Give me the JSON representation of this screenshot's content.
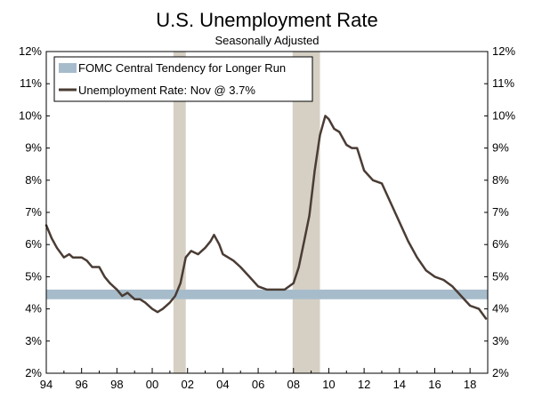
{
  "chart_data": {
    "type": "line",
    "title": "U.S. Unemployment Rate",
    "subtitle": "Seasonally Adjusted",
    "xlabel": "",
    "ylabel": "",
    "xlim": [
      1994,
      2019
    ],
    "ylim": [
      2,
      12
    ],
    "y_ticks": [
      2,
      3,
      4,
      5,
      6,
      7,
      8,
      9,
      10,
      11,
      12
    ],
    "y_tick_labels": [
      "2%",
      "3%",
      "4%",
      "5%",
      "6%",
      "7%",
      "8%",
      "9%",
      "10%",
      "11%",
      "12%"
    ],
    "x_ticks": [
      1994,
      1996,
      1998,
      2000,
      2002,
      2004,
      2006,
      2008,
      2010,
      2012,
      2014,
      2016,
      2018
    ],
    "x_tick_labels": [
      "94",
      "96",
      "98",
      "00",
      "02",
      "04",
      "06",
      "08",
      "10",
      "12",
      "14",
      "16",
      "18"
    ],
    "recessions": [
      {
        "start": 2001.2,
        "end": 2001.9
      },
      {
        "start": 2007.95,
        "end": 2009.5
      }
    ],
    "band": {
      "name": "FOMC Central Tendency for Longer Run",
      "low": 4.3,
      "high": 4.6
    },
    "series": [
      {
        "name": "Unemployment Rate: Nov @ 3.7%",
        "x": [
          1994.0,
          1994.3,
          1994.6,
          1995.0,
          1995.3,
          1995.5,
          1996.0,
          1996.3,
          1996.6,
          1997.0,
          1997.3,
          1997.6,
          1998.0,
          1998.3,
          1998.6,
          1999.0,
          1999.3,
          1999.6,
          2000.0,
          2000.3,
          2000.6,
          2001.0,
          2001.3,
          2001.6,
          2001.9,
          2002.2,
          2002.6,
          2003.0,
          2003.3,
          2003.5,
          2003.8,
          2004.0,
          2004.3,
          2004.6,
          2005.0,
          2005.5,
          2006.0,
          2006.5,
          2007.0,
          2007.5,
          2008.0,
          2008.3,
          2008.6,
          2008.9,
          2009.2,
          2009.5,
          2009.8,
          2010.0,
          2010.3,
          2010.6,
          2011.0,
          2011.3,
          2011.6,
          2012.0,
          2012.5,
          2013.0,
          2013.5,
          2014.0,
          2014.5,
          2015.0,
          2015.5,
          2016.0,
          2016.5,
          2017.0,
          2017.5,
          2018.0,
          2018.5,
          2018.9
        ],
        "y": [
          6.6,
          6.2,
          5.9,
          5.6,
          5.7,
          5.6,
          5.6,
          5.5,
          5.3,
          5.3,
          5.0,
          4.8,
          4.6,
          4.4,
          4.5,
          4.3,
          4.3,
          4.2,
          4.0,
          3.9,
          4.0,
          4.2,
          4.4,
          4.8,
          5.6,
          5.8,
          5.7,
          5.9,
          6.1,
          6.3,
          6.0,
          5.7,
          5.6,
          5.5,
          5.3,
          5.0,
          4.7,
          4.6,
          4.6,
          4.6,
          4.8,
          5.3,
          6.1,
          6.9,
          8.3,
          9.4,
          10.0,
          9.9,
          9.6,
          9.5,
          9.1,
          9.0,
          9.0,
          8.3,
          8.0,
          7.9,
          7.3,
          6.7,
          6.1,
          5.6,
          5.2,
          5.0,
          4.9,
          4.7,
          4.4,
          4.1,
          4.0,
          3.7
        ]
      }
    ],
    "legend": [
      "FOMC Central Tendency for Longer Run",
      "Unemployment Rate: Nov @ 3.7%"
    ],
    "colors": {
      "line": "#4a3c34",
      "band": "#a7bccb",
      "recession": "#d6d0c4",
      "axis": "#000000"
    }
  }
}
